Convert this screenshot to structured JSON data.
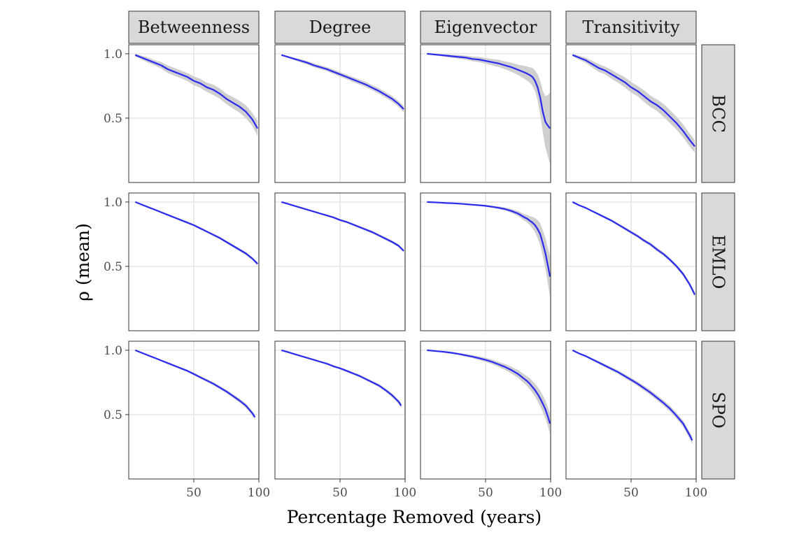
{
  "chart_data": {
    "type": "line",
    "layout": "facet_grid",
    "xlabel": "Percentage Removed (years)",
    "ylabel": "ρ (mean)",
    "x_ticks": [
      50,
      100
    ],
    "y_ticks": [
      0.5,
      1.0
    ],
    "x_range": [
      0,
      100
    ],
    "grid": true,
    "columns": [
      "Betweenness",
      "Degree",
      "Eigenvector",
      "Transitivity"
    ],
    "rows": [
      "BCC",
      "EMLO",
      "SPO"
    ],
    "series_color": "#2b2bf0",
    "ribbon_color": "#cfcfcf",
    "panels": [
      {
        "row": "BCC",
        "column": "Betweenness",
        "x": [
          5,
          10,
          15,
          20,
          25,
          30,
          35,
          40,
          45,
          50,
          55,
          60,
          65,
          70,
          75,
          80,
          85,
          90,
          95,
          99
        ],
        "y": [
          0.99,
          0.97,
          0.95,
          0.93,
          0.91,
          0.88,
          0.86,
          0.84,
          0.82,
          0.79,
          0.77,
          0.74,
          0.72,
          0.69,
          0.65,
          0.62,
          0.59,
          0.55,
          0.49,
          0.42
        ],
        "band": [
          0.01,
          0.015,
          0.02,
          0.02,
          0.025,
          0.03,
          0.03,
          0.03,
          0.03,
          0.035,
          0.035,
          0.035,
          0.04,
          0.04,
          0.04,
          0.045,
          0.045,
          0.05,
          0.05,
          0.06
        ]
      },
      {
        "row": "BCC",
        "column": "Degree",
        "x": [
          5,
          10,
          15,
          20,
          25,
          30,
          35,
          40,
          45,
          50,
          55,
          60,
          65,
          70,
          75,
          80,
          85,
          90,
          95,
          99
        ],
        "y": [
          0.99,
          0.975,
          0.96,
          0.945,
          0.93,
          0.91,
          0.895,
          0.88,
          0.86,
          0.84,
          0.82,
          0.8,
          0.78,
          0.76,
          0.735,
          0.71,
          0.68,
          0.65,
          0.61,
          0.57
        ],
        "band": [
          0.005,
          0.008,
          0.01,
          0.012,
          0.014,
          0.015,
          0.015,
          0.016,
          0.017,
          0.018,
          0.018,
          0.019,
          0.02,
          0.02,
          0.02,
          0.021,
          0.022,
          0.022,
          0.023,
          0.025
        ]
      },
      {
        "row": "BCC",
        "column": "Eigenvector",
        "x": [
          5,
          10,
          15,
          20,
          25,
          30,
          35,
          40,
          45,
          50,
          55,
          60,
          65,
          70,
          75,
          80,
          82,
          84,
          86,
          88,
          90,
          92,
          94,
          96,
          98,
          99.5
        ],
        "y": [
          1.0,
          0.995,
          0.99,
          0.985,
          0.98,
          0.975,
          0.97,
          0.96,
          0.955,
          0.945,
          0.935,
          0.925,
          0.91,
          0.895,
          0.875,
          0.855,
          0.845,
          0.835,
          0.82,
          0.79,
          0.74,
          0.66,
          0.55,
          0.47,
          0.44,
          0.42
        ],
        "band": [
          0.005,
          0.007,
          0.008,
          0.01,
          0.012,
          0.014,
          0.016,
          0.018,
          0.02,
          0.022,
          0.025,
          0.028,
          0.03,
          0.035,
          0.04,
          0.05,
          0.055,
          0.06,
          0.07,
          0.08,
          0.1,
          0.13,
          0.16,
          0.2,
          0.24,
          0.28
        ]
      },
      {
        "row": "BCC",
        "column": "Transitivity",
        "x": [
          5,
          10,
          15,
          20,
          25,
          30,
          35,
          40,
          45,
          50,
          55,
          60,
          65,
          70,
          75,
          80,
          85,
          90,
          95,
          99
        ],
        "y": [
          0.99,
          0.97,
          0.95,
          0.92,
          0.89,
          0.87,
          0.84,
          0.81,
          0.78,
          0.74,
          0.71,
          0.67,
          0.63,
          0.6,
          0.56,
          0.51,
          0.46,
          0.4,
          0.33,
          0.28
        ],
        "band": [
          0.008,
          0.015,
          0.02,
          0.025,
          0.03,
          0.03,
          0.035,
          0.035,
          0.04,
          0.04,
          0.04,
          0.045,
          0.045,
          0.045,
          0.05,
          0.05,
          0.05,
          0.05,
          0.05,
          0.05
        ]
      },
      {
        "row": "EMLO",
        "column": "Betweenness",
        "x": [
          5,
          10,
          15,
          20,
          25,
          30,
          35,
          40,
          45,
          50,
          55,
          60,
          65,
          70,
          75,
          80,
          85,
          90,
          95,
          99
        ],
        "y": [
          1.0,
          0.98,
          0.96,
          0.94,
          0.92,
          0.9,
          0.88,
          0.86,
          0.84,
          0.82,
          0.795,
          0.77,
          0.745,
          0.72,
          0.69,
          0.66,
          0.63,
          0.6,
          0.56,
          0.52
        ],
        "band": [
          0.003,
          0.004,
          0.005,
          0.006,
          0.006,
          0.007,
          0.007,
          0.008,
          0.008,
          0.008,
          0.009,
          0.009,
          0.01,
          0.01,
          0.01,
          0.011,
          0.011,
          0.012,
          0.012,
          0.013
        ]
      },
      {
        "row": "EMLO",
        "column": "Degree",
        "x": [
          5,
          10,
          15,
          20,
          25,
          30,
          35,
          40,
          45,
          50,
          55,
          60,
          65,
          70,
          75,
          80,
          85,
          90,
          95,
          99
        ],
        "y": [
          1.0,
          0.985,
          0.97,
          0.955,
          0.94,
          0.925,
          0.91,
          0.895,
          0.88,
          0.86,
          0.845,
          0.825,
          0.805,
          0.785,
          0.765,
          0.74,
          0.715,
          0.69,
          0.66,
          0.62
        ],
        "band": [
          0.003,
          0.004,
          0.005,
          0.005,
          0.006,
          0.006,
          0.007,
          0.007,
          0.008,
          0.008,
          0.008,
          0.009,
          0.009,
          0.01,
          0.01,
          0.01,
          0.011,
          0.011,
          0.012,
          0.012
        ]
      },
      {
        "row": "EMLO",
        "column": "Eigenvector",
        "x": [
          5,
          10,
          15,
          20,
          25,
          30,
          35,
          40,
          45,
          50,
          55,
          60,
          65,
          70,
          75,
          80,
          82,
          84,
          86,
          88,
          90,
          92,
          94,
          96,
          98,
          99.5
        ],
        "y": [
          1.0,
          0.998,
          0.995,
          0.992,
          0.99,
          0.987,
          0.983,
          0.979,
          0.975,
          0.97,
          0.963,
          0.955,
          0.945,
          0.93,
          0.91,
          0.88,
          0.87,
          0.855,
          0.84,
          0.82,
          0.79,
          0.75,
          0.68,
          0.6,
          0.5,
          0.42
        ],
        "band": [
          0.002,
          0.002,
          0.003,
          0.003,
          0.004,
          0.004,
          0.005,
          0.005,
          0.006,
          0.007,
          0.008,
          0.01,
          0.012,
          0.015,
          0.02,
          0.025,
          0.03,
          0.035,
          0.045,
          0.055,
          0.07,
          0.085,
          0.1,
          0.12,
          0.14,
          0.16
        ]
      },
      {
        "row": "EMLO",
        "column": "Transitivity",
        "x": [
          5,
          10,
          15,
          20,
          25,
          30,
          35,
          40,
          45,
          50,
          55,
          60,
          65,
          70,
          75,
          80,
          85,
          90,
          95,
          99
        ],
        "y": [
          1.0,
          0.975,
          0.955,
          0.93,
          0.905,
          0.88,
          0.855,
          0.825,
          0.795,
          0.765,
          0.735,
          0.7,
          0.67,
          0.63,
          0.595,
          0.55,
          0.5,
          0.44,
          0.36,
          0.28
        ],
        "band": [
          0.003,
          0.005,
          0.006,
          0.007,
          0.008,
          0.009,
          0.01,
          0.01,
          0.011,
          0.012,
          0.012,
          0.013,
          0.013,
          0.014,
          0.014,
          0.015,
          0.015,
          0.016,
          0.017,
          0.018
        ]
      },
      {
        "row": "SPO",
        "column": "Betweenness",
        "x": [
          5,
          10,
          15,
          20,
          25,
          30,
          35,
          40,
          45,
          50,
          55,
          60,
          65,
          70,
          75,
          80,
          85,
          90,
          95,
          97
        ],
        "y": [
          1.0,
          0.98,
          0.96,
          0.94,
          0.92,
          0.9,
          0.88,
          0.86,
          0.84,
          0.815,
          0.79,
          0.765,
          0.74,
          0.71,
          0.68,
          0.645,
          0.61,
          0.57,
          0.51,
          0.48
        ],
        "band": [
          0.003,
          0.004,
          0.005,
          0.006,
          0.006,
          0.007,
          0.008,
          0.008,
          0.009,
          0.01,
          0.01,
          0.011,
          0.012,
          0.012,
          0.013,
          0.014,
          0.015,
          0.016,
          0.018,
          0.02
        ]
      },
      {
        "row": "SPO",
        "column": "Degree",
        "x": [
          5,
          10,
          15,
          20,
          25,
          30,
          35,
          40,
          45,
          50,
          55,
          60,
          65,
          70,
          75,
          80,
          85,
          90,
          95,
          97
        ],
        "y": [
          1.0,
          0.985,
          0.97,
          0.955,
          0.94,
          0.925,
          0.91,
          0.895,
          0.875,
          0.86,
          0.84,
          0.82,
          0.8,
          0.775,
          0.75,
          0.725,
          0.69,
          0.65,
          0.6,
          0.57
        ],
        "band": [
          0.003,
          0.004,
          0.005,
          0.005,
          0.006,
          0.006,
          0.007,
          0.007,
          0.008,
          0.008,
          0.009,
          0.009,
          0.01,
          0.01,
          0.011,
          0.012,
          0.013,
          0.014,
          0.016,
          0.02
        ]
      },
      {
        "row": "SPO",
        "column": "Eigenvector",
        "x": [
          5,
          10,
          15,
          20,
          25,
          30,
          35,
          40,
          45,
          50,
          55,
          60,
          65,
          70,
          75,
          80,
          82,
          84,
          86,
          88,
          90,
          92,
          94,
          96,
          98,
          99.5
        ],
        "y": [
          1.0,
          0.995,
          0.99,
          0.985,
          0.978,
          0.97,
          0.96,
          0.95,
          0.938,
          0.925,
          0.91,
          0.89,
          0.87,
          0.845,
          0.815,
          0.775,
          0.76,
          0.74,
          0.715,
          0.69,
          0.66,
          0.625,
          0.585,
          0.54,
          0.48,
          0.43
        ],
        "band": [
          0.003,
          0.004,
          0.005,
          0.006,
          0.007,
          0.008,
          0.01,
          0.012,
          0.014,
          0.016,
          0.018,
          0.02,
          0.023,
          0.026,
          0.03,
          0.035,
          0.038,
          0.042,
          0.046,
          0.05,
          0.055,
          0.06,
          0.065,
          0.07,
          0.075,
          0.08
        ]
      },
      {
        "row": "SPO",
        "column": "Transitivity",
        "x": [
          5,
          10,
          15,
          20,
          25,
          30,
          35,
          40,
          45,
          50,
          55,
          60,
          65,
          70,
          75,
          80,
          85,
          90,
          95,
          97
        ],
        "y": [
          1.0,
          0.975,
          0.955,
          0.93,
          0.905,
          0.88,
          0.855,
          0.83,
          0.8,
          0.77,
          0.74,
          0.705,
          0.67,
          0.63,
          0.59,
          0.545,
          0.49,
          0.43,
          0.34,
          0.3
        ],
        "band": [
          0.004,
          0.006,
          0.008,
          0.01,
          0.011,
          0.012,
          0.013,
          0.014,
          0.015,
          0.016,
          0.017,
          0.018,
          0.019,
          0.02,
          0.021,
          0.022,
          0.023,
          0.024,
          0.026,
          0.03
        ]
      }
    ]
  }
}
